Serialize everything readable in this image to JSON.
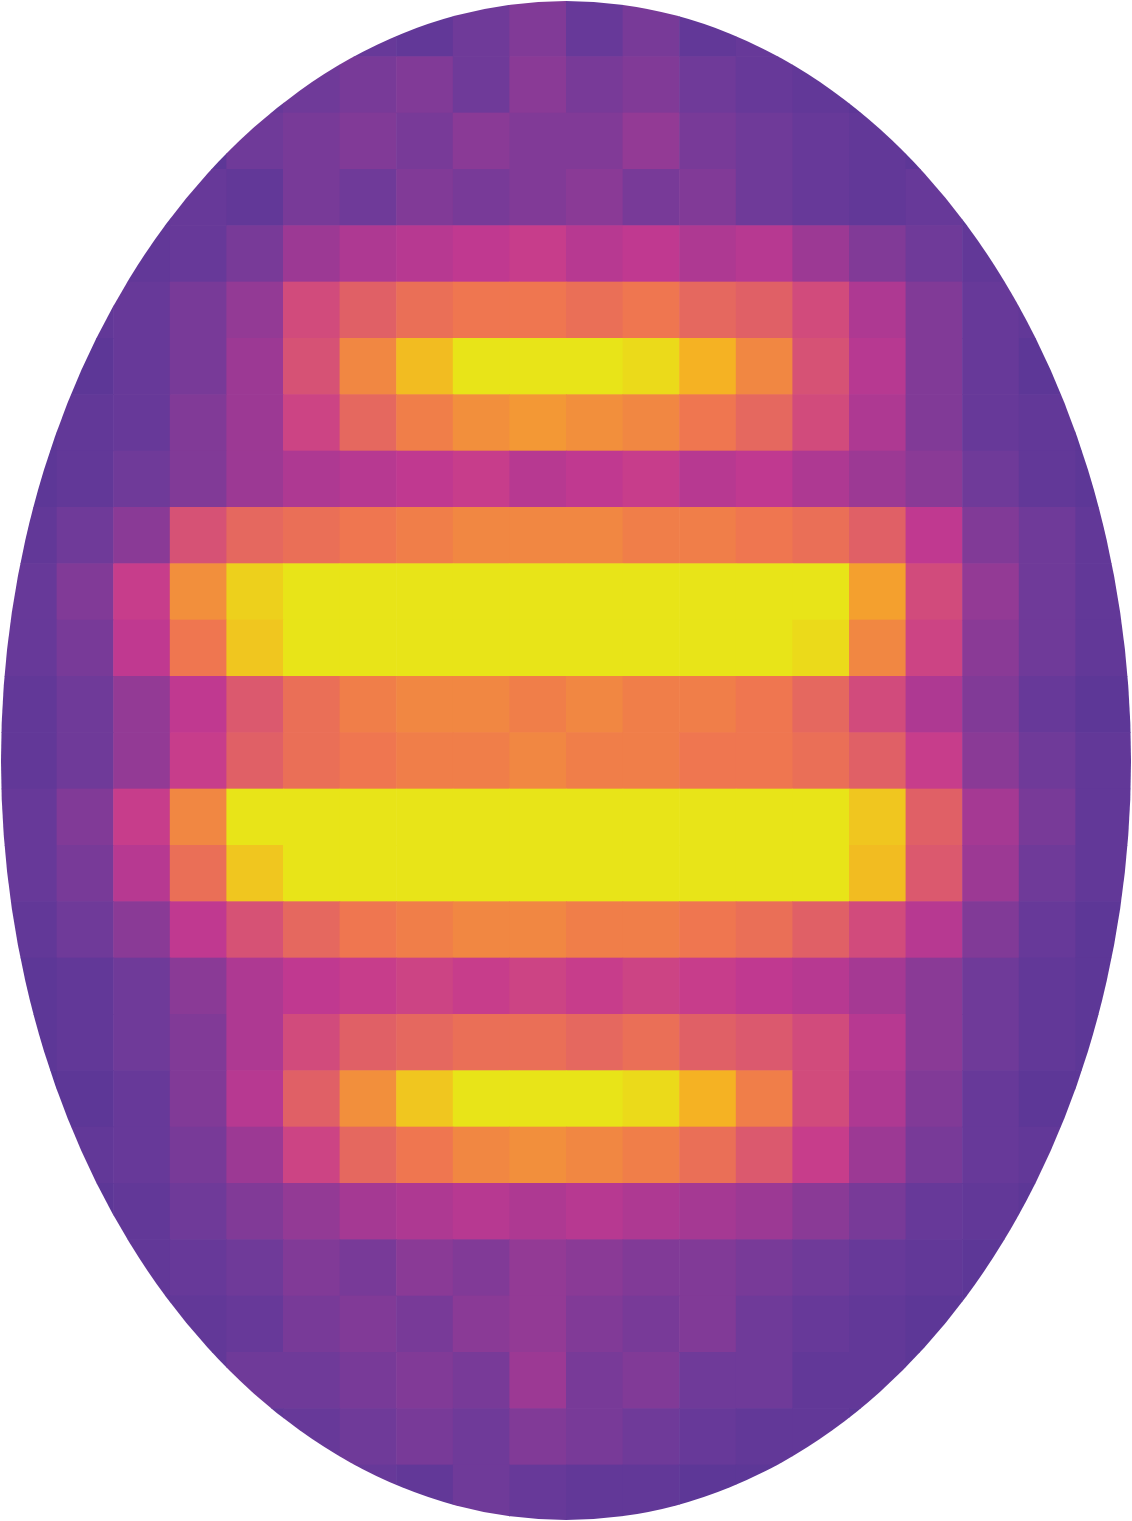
{
  "chart_data": {
    "type": "heatmap",
    "zlim": [
      0,
      1
    ],
    "tick_labels": false,
    "cells": [
      [
        0.18,
        0.2,
        0.18,
        0.2,
        0.22,
        0.2,
        0.24,
        0.22,
        0.26,
        0.3,
        0.24,
        0.28,
        0.22,
        0.24,
        0.2,
        0.22,
        0.18,
        0.2,
        0.18,
        0.2
      ],
      [
        0.2,
        0.18,
        0.2,
        0.22,
        0.24,
        0.26,
        0.28,
        0.3,
        0.26,
        0.32,
        0.28,
        0.3,
        0.26,
        0.24,
        0.22,
        0.2,
        0.22,
        0.18,
        0.2,
        0.18
      ],
      [
        0.18,
        0.2,
        0.22,
        0.2,
        0.26,
        0.28,
        0.3,
        0.28,
        0.32,
        0.3,
        0.3,
        0.34,
        0.28,
        0.26,
        0.24,
        0.22,
        0.2,
        0.2,
        0.18,
        0.2
      ],
      [
        0.2,
        0.22,
        0.2,
        0.24,
        0.22,
        0.28,
        0.26,
        0.3,
        0.28,
        0.3,
        0.32,
        0.28,
        0.3,
        0.26,
        0.24,
        0.22,
        0.24,
        0.2,
        0.2,
        0.18
      ],
      [
        0.18,
        0.2,
        0.22,
        0.24,
        0.28,
        0.36,
        0.4,
        0.42,
        0.44,
        0.46,
        0.42,
        0.44,
        0.4,
        0.42,
        0.36,
        0.3,
        0.26,
        0.22,
        0.2,
        0.2
      ],
      [
        0.2,
        0.22,
        0.24,
        0.28,
        0.34,
        0.5,
        0.56,
        0.6,
        0.62,
        0.62,
        0.6,
        0.62,
        0.58,
        0.56,
        0.5,
        0.4,
        0.3,
        0.24,
        0.22,
        0.2
      ],
      [
        0.18,
        0.2,
        0.24,
        0.28,
        0.36,
        0.52,
        0.66,
        0.78,
        0.86,
        0.9,
        0.88,
        0.84,
        0.76,
        0.66,
        0.52,
        0.42,
        0.3,
        0.24,
        0.2,
        0.2
      ],
      [
        0.2,
        0.22,
        0.24,
        0.3,
        0.36,
        0.48,
        0.58,
        0.64,
        0.68,
        0.7,
        0.68,
        0.66,
        0.62,
        0.58,
        0.5,
        0.4,
        0.3,
        0.24,
        0.22,
        0.2
      ],
      [
        0.2,
        0.22,
        0.26,
        0.3,
        0.36,
        0.4,
        0.42,
        0.44,
        0.46,
        0.42,
        0.44,
        0.46,
        0.42,
        0.44,
        0.4,
        0.36,
        0.32,
        0.26,
        0.22,
        0.2
      ],
      [
        0.22,
        0.26,
        0.32,
        0.52,
        0.58,
        0.6,
        0.62,
        0.64,
        0.66,
        0.66,
        0.66,
        0.64,
        0.64,
        0.62,
        0.6,
        0.56,
        0.44,
        0.3,
        0.26,
        0.22
      ],
      [
        0.24,
        0.3,
        0.46,
        0.68,
        0.82,
        0.95,
        1,
        1,
        1,
        1,
        1,
        1,
        1,
        1,
        0.92,
        0.72,
        0.5,
        0.34,
        0.26,
        0.22
      ],
      [
        0.24,
        0.28,
        0.44,
        0.62,
        0.8,
        0.92,
        1,
        1,
        1,
        1,
        1,
        1,
        1,
        0.96,
        0.84,
        0.66,
        0.48,
        0.32,
        0.26,
        0.22
      ],
      [
        0.22,
        0.26,
        0.34,
        0.44,
        0.54,
        0.6,
        0.64,
        0.66,
        0.66,
        0.64,
        0.66,
        0.64,
        0.64,
        0.62,
        0.58,
        0.5,
        0.4,
        0.3,
        0.24,
        0.2
      ],
      [
        0.22,
        0.26,
        0.34,
        0.46,
        0.56,
        0.6,
        0.62,
        0.64,
        0.64,
        0.66,
        0.64,
        0.64,
        0.62,
        0.62,
        0.6,
        0.56,
        0.46,
        0.32,
        0.26,
        0.22
      ],
      [
        0.24,
        0.3,
        0.46,
        0.66,
        0.86,
        0.98,
        1,
        1,
        1,
        1,
        1,
        1,
        1,
        1,
        0.96,
        0.8,
        0.56,
        0.38,
        0.28,
        0.22
      ],
      [
        0.24,
        0.28,
        0.42,
        0.6,
        0.8,
        0.94,
        1,
        1,
        1,
        1,
        1,
        1,
        1,
        1,
        0.94,
        0.78,
        0.54,
        0.36,
        0.26,
        0.22
      ],
      [
        0.22,
        0.26,
        0.32,
        0.44,
        0.52,
        0.58,
        0.62,
        0.64,
        0.66,
        0.66,
        0.64,
        0.64,
        0.62,
        0.6,
        0.56,
        0.5,
        0.42,
        0.3,
        0.24,
        0.2
      ],
      [
        0.2,
        0.22,
        0.26,
        0.32,
        0.4,
        0.44,
        0.46,
        0.48,
        0.46,
        0.48,
        0.46,
        0.48,
        0.46,
        0.44,
        0.42,
        0.38,
        0.32,
        0.26,
        0.22,
        0.2
      ],
      [
        0.2,
        0.22,
        0.26,
        0.3,
        0.4,
        0.5,
        0.56,
        0.58,
        0.6,
        0.6,
        0.58,
        0.6,
        0.56,
        0.54,
        0.5,
        0.42,
        0.32,
        0.26,
        0.22,
        0.2
      ],
      [
        0.18,
        0.2,
        0.24,
        0.3,
        0.42,
        0.56,
        0.68,
        0.8,
        0.86,
        0.88,
        0.88,
        0.84,
        0.76,
        0.64,
        0.5,
        0.4,
        0.3,
        0.24,
        0.2,
        0.2
      ],
      [
        0.2,
        0.22,
        0.24,
        0.28,
        0.36,
        0.48,
        0.58,
        0.62,
        0.66,
        0.68,
        0.66,
        0.64,
        0.6,
        0.54,
        0.46,
        0.36,
        0.28,
        0.24,
        0.22,
        0.2
      ],
      [
        0.2,
        0.2,
        0.22,
        0.26,
        0.3,
        0.34,
        0.38,
        0.4,
        0.42,
        0.4,
        0.42,
        0.4,
        0.38,
        0.36,
        0.32,
        0.28,
        0.24,
        0.22,
        0.2,
        0.2
      ],
      [
        0.18,
        0.2,
        0.22,
        0.24,
        0.26,
        0.3,
        0.28,
        0.32,
        0.3,
        0.34,
        0.32,
        0.3,
        0.3,
        0.28,
        0.26,
        0.24,
        0.22,
        0.2,
        0.2,
        0.18
      ],
      [
        0.2,
        0.18,
        0.2,
        0.22,
        0.24,
        0.28,
        0.3,
        0.28,
        0.32,
        0.34,
        0.3,
        0.28,
        0.3,
        0.26,
        0.24,
        0.22,
        0.2,
        0.2,
        0.18,
        0.2
      ],
      [
        0.18,
        0.2,
        0.2,
        0.22,
        0.26,
        0.26,
        0.28,
        0.3,
        0.28,
        0.36,
        0.28,
        0.3,
        0.26,
        0.26,
        0.22,
        0.22,
        0.2,
        0.18,
        0.2,
        0.18
      ],
      [
        0.2,
        0.18,
        0.2,
        0.2,
        0.22,
        0.24,
        0.26,
        0.28,
        0.26,
        0.3,
        0.28,
        0.26,
        0.24,
        0.22,
        0.22,
        0.2,
        0.2,
        0.2,
        0.18,
        0.2
      ],
      [
        0.18,
        0.2,
        0.18,
        0.2,
        0.2,
        0.22,
        0.24,
        0.22,
        0.26,
        0.24,
        0.22,
        0.22,
        0.2,
        0.2,
        0.2,
        0.18,
        0.2,
        0.18,
        0.2,
        0.18
      ]
    ]
  }
}
